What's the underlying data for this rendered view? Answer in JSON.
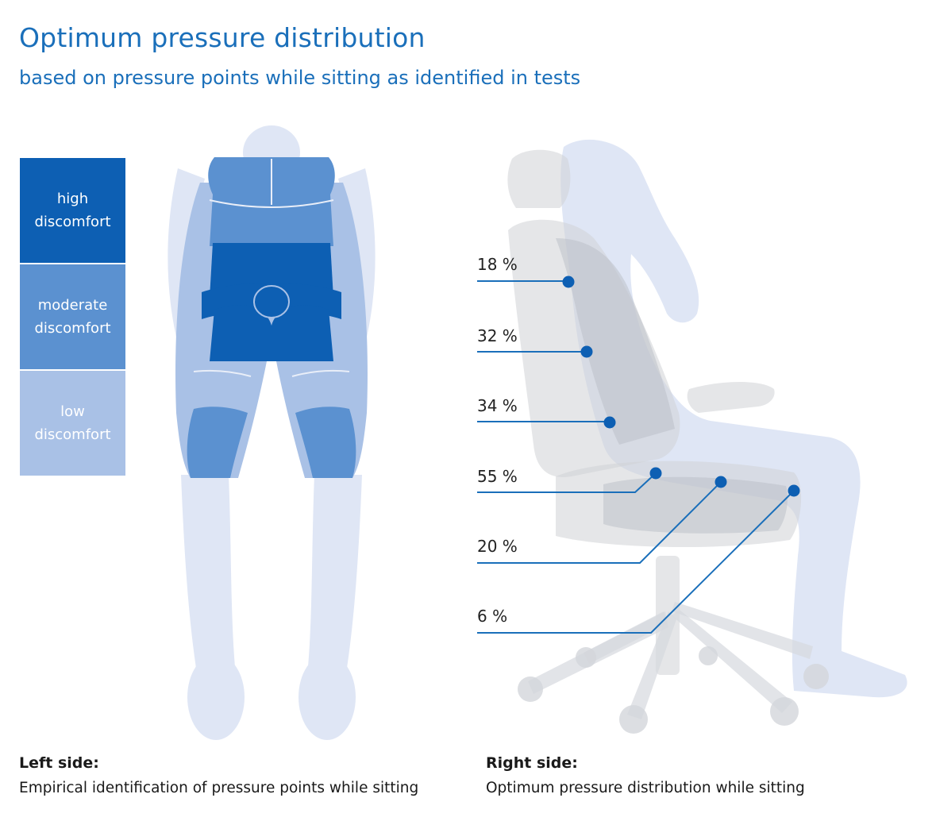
{
  "title": "Optimum pressure distribution",
  "subtitle": "based on pressure points while sitting as identified in tests",
  "colors": {
    "accent": "#1a6fba",
    "high": "#0d5fb3",
    "moderate": "#5b91d0",
    "low": "#a9c1e6",
    "silhouette": "#dfe6f5",
    "chair": "#cfd2d6",
    "line": "#1a6fba"
  },
  "legend": [
    {
      "label": "high discomfort",
      "level": "high"
    },
    {
      "label": "moderate discomfort",
      "level": "moderate"
    },
    {
      "label": "low discomfort",
      "level": "low"
    }
  ],
  "pressure_points": [
    {
      "label": "18 %"
    },
    {
      "label": "32 %"
    },
    {
      "label": "34 %"
    },
    {
      "label": "55 %"
    },
    {
      "label": "20 %"
    },
    {
      "label": "6 %"
    }
  ],
  "captions": {
    "left": {
      "heading": "Left side:",
      "text": "Empirical identification of pressure points while sitting"
    },
    "right": {
      "heading": "Right side:",
      "text": "Optimum pressure distribution while sitting"
    }
  }
}
